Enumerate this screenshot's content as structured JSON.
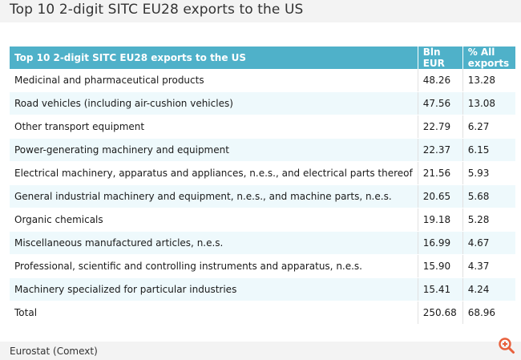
{
  "title": "Top 10 2-digit SITC EU28 exports to the US",
  "table": {
    "headers": {
      "name": "Top 10 2-digit SITC EU28 exports to the US",
      "bln": "Bln EUR",
      "pct": "% All exports"
    },
    "rows": [
      {
        "name": "Medicinal and pharmaceutical products",
        "bln": "48.26",
        "pct": "13.28"
      },
      {
        "name": "Road vehicles (including air-cushion vehicles)",
        "bln": "47.56",
        "pct": "13.08"
      },
      {
        "name": "Other transport equipment",
        "bln": "22.79",
        "pct": "6.27"
      },
      {
        "name": "Power-generating machinery and equipment",
        "bln": "22.37",
        "pct": "6.15"
      },
      {
        "name": "Electrical machinery, apparatus and appliances, n.e.s., and electrical parts thereof",
        "bln": "21.56",
        "pct": "5.93"
      },
      {
        "name": "General industrial machinery and equipment, n.e.s., and machine parts, n.e.s.",
        "bln": "20.65",
        "pct": "5.68"
      },
      {
        "name": "Organic chemicals",
        "bln": "19.18",
        "pct": "5.28"
      },
      {
        "name": "Miscellaneous manufactured articles, n.e.s.",
        "bln": "16.99",
        "pct": "4.67"
      },
      {
        "name": "Professional, scientific and controlling instruments and apparatus, n.e.s.",
        "bln": "15.90",
        "pct": "4.37"
      },
      {
        "name": "Machinery specialized for particular industries",
        "bln": "15.41",
        "pct": "4.24"
      }
    ],
    "total": {
      "name": "Total",
      "bln": "250.68",
      "pct": "68.96"
    }
  },
  "source": "Eurostat (Comext)",
  "zoom_icon": "zoom-in-icon",
  "colors": {
    "header_bg": "#4fb1c9",
    "alt_row_bg": "#eef9fc",
    "zoom_icon": "#e8603c"
  }
}
